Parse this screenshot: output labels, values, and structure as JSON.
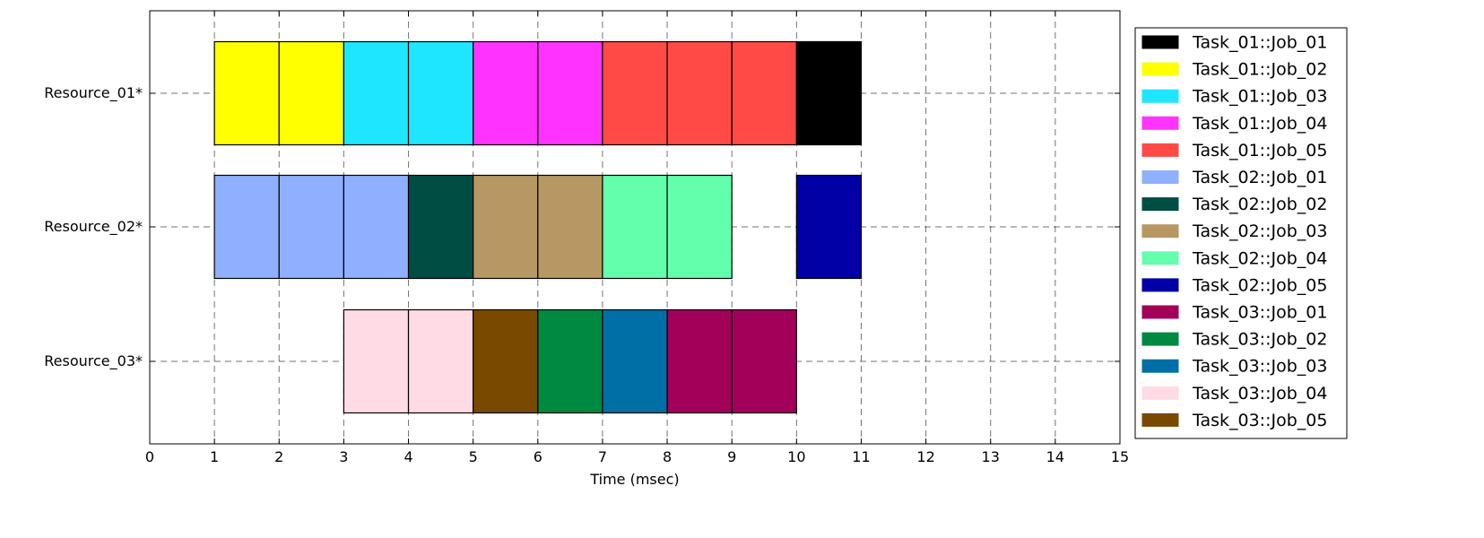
{
  "chart_data": {
    "type": "gantt",
    "xlabel": "Time (msec)",
    "xlim": [
      0,
      15
    ],
    "xticks": [
      0,
      1,
      2,
      3,
      4,
      5,
      6,
      7,
      8,
      9,
      10,
      11,
      12,
      13,
      14,
      15
    ],
    "grid": true,
    "legend_position": "right",
    "resources": [
      "Resource_01*",
      "Resource_02*",
      "Resource_03*"
    ],
    "jobs": [
      {
        "name": "Task_01::Job_01",
        "color": "#000000"
      },
      {
        "name": "Task_01::Job_02",
        "color": "#ffff00"
      },
      {
        "name": "Task_01::Job_03",
        "color": "#1ee6ff"
      },
      {
        "name": "Task_01::Job_04",
        "color": "#ff33ff"
      },
      {
        "name": "Task_01::Job_05",
        "color": "#ff4a46"
      },
      {
        "name": "Task_02::Job_01",
        "color": "#8fb0ff"
      },
      {
        "name": "Task_02::Job_02",
        "color": "#004d43"
      },
      {
        "name": "Task_02::Job_03",
        "color": "#b79762"
      },
      {
        "name": "Task_02::Job_04",
        "color": "#63ffac"
      },
      {
        "name": "Task_02::Job_05",
        "color": "#0000a6"
      },
      {
        "name": "Task_03::Job_01",
        "color": "#a30059"
      },
      {
        "name": "Task_03::Job_02",
        "color": "#008941"
      },
      {
        "name": "Task_03::Job_03",
        "color": "#006fa6"
      },
      {
        "name": "Task_03::Job_04",
        "color": "#ffdbe5"
      },
      {
        "name": "Task_03::Job_05",
        "color": "#7a4900"
      }
    ],
    "segments": [
      {
        "resource": 0,
        "start": 1,
        "end": 2,
        "job": 1
      },
      {
        "resource": 0,
        "start": 2,
        "end": 3,
        "job": 1
      },
      {
        "resource": 0,
        "start": 3,
        "end": 4,
        "job": 2
      },
      {
        "resource": 0,
        "start": 4,
        "end": 5,
        "job": 2
      },
      {
        "resource": 0,
        "start": 5,
        "end": 6,
        "job": 3
      },
      {
        "resource": 0,
        "start": 6,
        "end": 7,
        "job": 3
      },
      {
        "resource": 0,
        "start": 7,
        "end": 8,
        "job": 4
      },
      {
        "resource": 0,
        "start": 8,
        "end": 9,
        "job": 4
      },
      {
        "resource": 0,
        "start": 9,
        "end": 10,
        "job": 4
      },
      {
        "resource": 0,
        "start": 10,
        "end": 11,
        "job": 0
      },
      {
        "resource": 1,
        "start": 1,
        "end": 2,
        "job": 5
      },
      {
        "resource": 1,
        "start": 2,
        "end": 3,
        "job": 5
      },
      {
        "resource": 1,
        "start": 3,
        "end": 4,
        "job": 5
      },
      {
        "resource": 1,
        "start": 4,
        "end": 5,
        "job": 6
      },
      {
        "resource": 1,
        "start": 5,
        "end": 6,
        "job": 7
      },
      {
        "resource": 1,
        "start": 6,
        "end": 7,
        "job": 7
      },
      {
        "resource": 1,
        "start": 7,
        "end": 8,
        "job": 8
      },
      {
        "resource": 1,
        "start": 8,
        "end": 9,
        "job": 8
      },
      {
        "resource": 1,
        "start": 10,
        "end": 11,
        "job": 9
      },
      {
        "resource": 2,
        "start": 3,
        "end": 4,
        "job": 13
      },
      {
        "resource": 2,
        "start": 4,
        "end": 5,
        "job": 13
      },
      {
        "resource": 2,
        "start": 5,
        "end": 6,
        "job": 14
      },
      {
        "resource": 2,
        "start": 6,
        "end": 7,
        "job": 11
      },
      {
        "resource": 2,
        "start": 7,
        "end": 8,
        "job": 12
      },
      {
        "resource": 2,
        "start": 8,
        "end": 9,
        "job": 10
      },
      {
        "resource": 2,
        "start": 9,
        "end": 10,
        "job": 10
      }
    ]
  }
}
